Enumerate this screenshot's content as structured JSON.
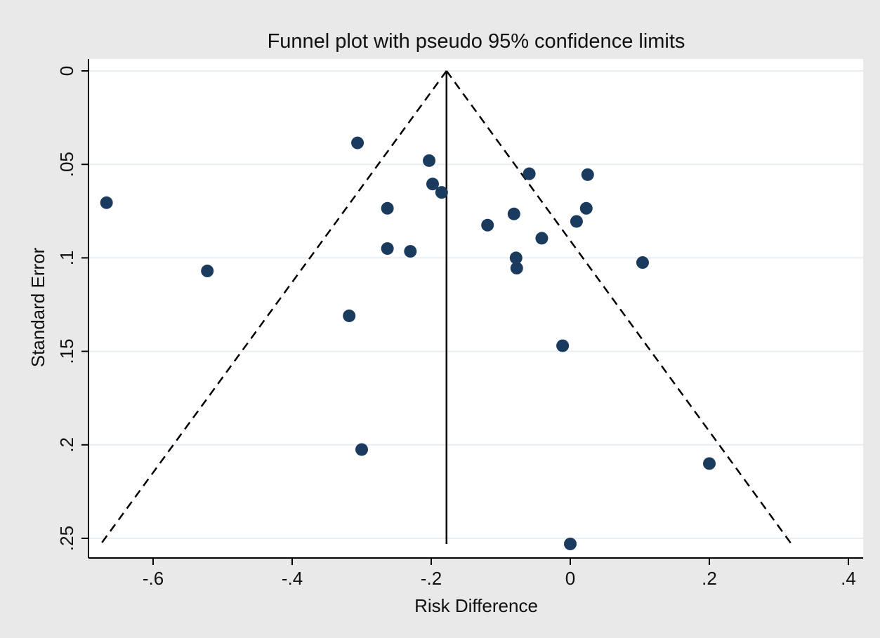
{
  "chart_data": {
    "type": "scatter",
    "title": "Funnel plot with pseudo 95% confidence limits",
    "xlabel": "Risk Difference",
    "ylabel": "Standard Error",
    "xlim": [
      -0.69,
      0.42
    ],
    "ylim": [
      0,
      0.26
    ],
    "y_reversed": true,
    "x_ticks": [
      -0.6,
      -0.4,
      -0.2,
      0,
      0.2,
      0.4
    ],
    "x_tick_labels": [
      "-.6",
      "-.4",
      "-.2",
      "0",
      ".2",
      ".4"
    ],
    "y_ticks": [
      0,
      0.05,
      0.1,
      0.15,
      0.2,
      0.25
    ],
    "y_tick_labels": [
      "0",
      ".05",
      ".1",
      ".15",
      ".2",
      ".25"
    ],
    "grid": true,
    "pooled_estimate": -0.178,
    "funnel_se_max": 0.253,
    "funnel_lower_at_max": -0.675,
    "funnel_upper_at_max": 0.318,
    "points": [
      {
        "x": -0.667,
        "y": 0.0705
      },
      {
        "x": -0.522,
        "y": 0.107
      },
      {
        "x": -0.306,
        "y": 0.0385
      },
      {
        "x": -0.318,
        "y": 0.131
      },
      {
        "x": -0.3,
        "y": 0.2025
      },
      {
        "x": -0.263,
        "y": 0.0735
      },
      {
        "x": -0.263,
        "y": 0.095
      },
      {
        "x": -0.23,
        "y": 0.0965
      },
      {
        "x": -0.203,
        "y": 0.048
      },
      {
        "x": -0.198,
        "y": 0.0605
      },
      {
        "x": -0.185,
        "y": 0.065
      },
      {
        "x": -0.119,
        "y": 0.0825
      },
      {
        "x": -0.081,
        "y": 0.0765
      },
      {
        "x": -0.078,
        "y": 0.1
      },
      {
        "x": -0.077,
        "y": 0.1055
      },
      {
        "x": -0.059,
        "y": 0.055
      },
      {
        "x": -0.041,
        "y": 0.0895
      },
      {
        "x": -0.011,
        "y": 0.147
      },
      {
        "x": 0.0,
        "y": 0.253
      },
      {
        "x": 0.009,
        "y": 0.0805
      },
      {
        "x": 0.023,
        "y": 0.0735
      },
      {
        "x": 0.025,
        "y": 0.0555
      },
      {
        "x": 0.104,
        "y": 0.1025
      },
      {
        "x": 0.2,
        "y": 0.21
      }
    ],
    "colors": {
      "background": "#e9e9e9",
      "plot_background": "#ffffff",
      "grid": "#e8eef2",
      "marker": "#1a3a5e",
      "line": "#000000"
    }
  }
}
